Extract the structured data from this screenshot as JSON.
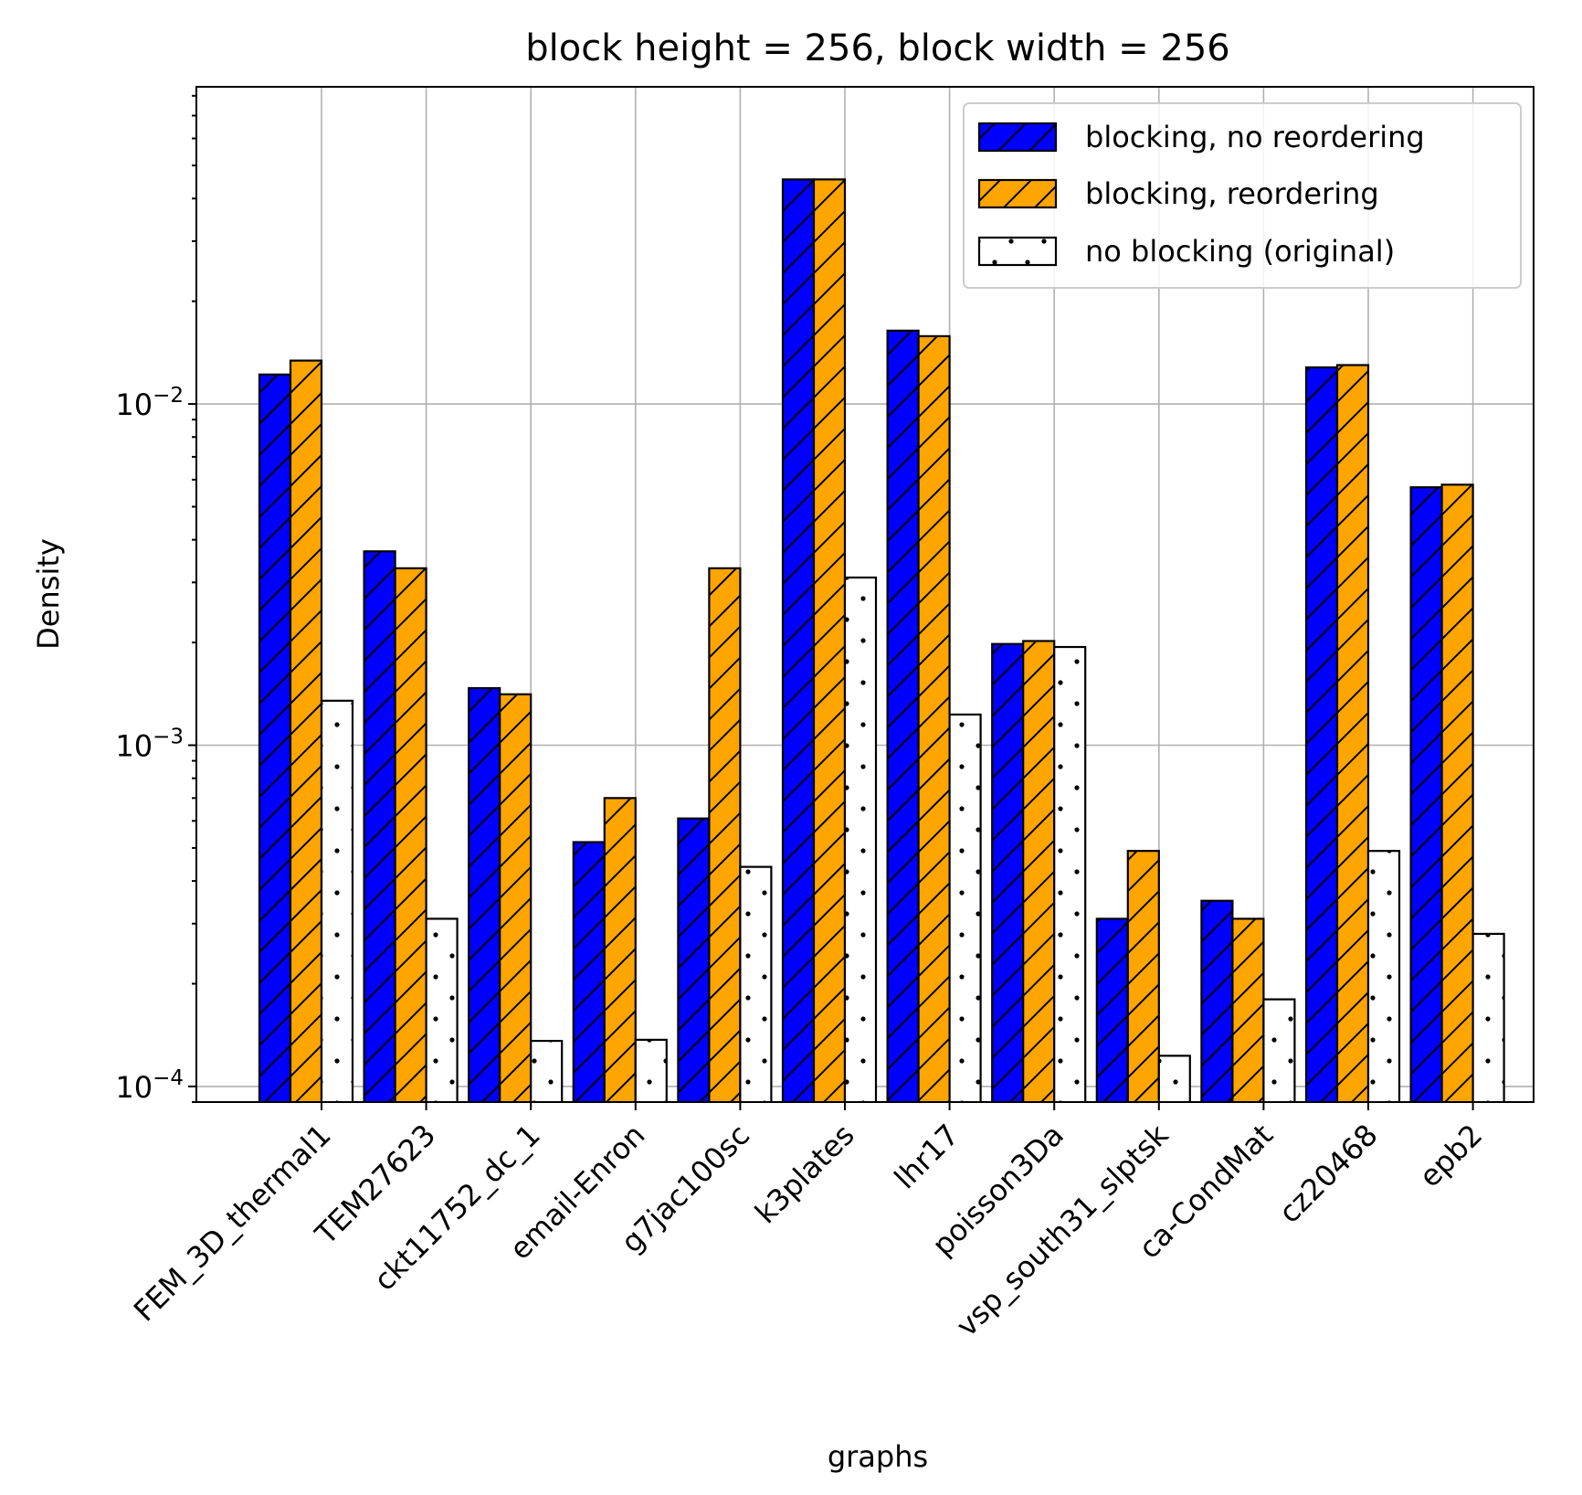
{
  "chart_data": {
    "type": "bar",
    "title": "block height = 256, block width = 256",
    "xlabel": "graphs",
    "ylabel": "Density",
    "yscale": "log",
    "ylim": [
      9e-05,
      0.085
    ],
    "yticks": [
      {
        "value": 0.0001,
        "base": "10",
        "exp": "−4"
      },
      {
        "value": 0.001,
        "base": "10",
        "exp": "−3"
      },
      {
        "value": 0.01,
        "base": "10",
        "exp": "−2"
      }
    ],
    "grid": true,
    "legend_position": "top-right",
    "categories": [
      "FEM_3D_thermal1",
      "TEM27623",
      "ckt11752_dc_1",
      "email-Enron",
      "g7jac100sc",
      "k3plates",
      "lhr17",
      "poisson3Da",
      "vsp_south31_slptsk",
      "ca-CondMat",
      "cz20468",
      "epb2"
    ],
    "series": [
      {
        "name": "blocking, no reordering",
        "color": "#0000ff",
        "hatch": "diagonal",
        "values": [
          0.0122,
          0.0037,
          0.00147,
          0.00052,
          0.00061,
          0.0455,
          0.0164,
          0.00198,
          0.00031,
          0.00035,
          0.0128,
          0.0057
        ]
      },
      {
        "name": "blocking, reordering",
        "color": "#ffa500",
        "hatch": "diagonal",
        "values": [
          0.0134,
          0.0033,
          0.00141,
          0.0007,
          0.0033,
          0.0455,
          0.0158,
          0.00202,
          0.00049,
          0.00031,
          0.013,
          0.0058
        ]
      },
      {
        "name": "no blocking (original)",
        "color": "#ffffff",
        "hatch": "dots",
        "values": [
          0.00135,
          0.00031,
          0.000136,
          0.000137,
          0.00044,
          0.0031,
          0.00123,
          0.00194,
          0.000123,
          0.00018,
          0.00049,
          0.00028
        ]
      }
    ]
  }
}
